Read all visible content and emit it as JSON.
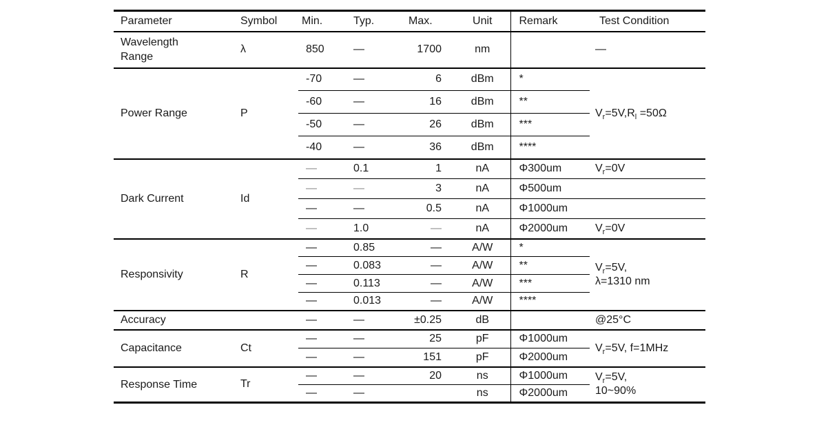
{
  "table": {
    "headers": [
      "Parameter",
      "Symbol",
      "Min.",
      "Typ.",
      "Max.",
      "Unit",
      "Remark",
      "Test Condition"
    ],
    "sections": [
      {
        "id": "wavelength-range",
        "parameter": "Wavelength\nRange",
        "symbol": "λ",
        "rows": [
          {
            "min": "850",
            "typ": "—",
            "max": "1700",
            "unit": "nm",
            "remark": "",
            "test": "—"
          }
        ]
      },
      {
        "id": "power-range",
        "parameter": "Power Range",
        "symbol": "P",
        "test_merged": "V~r~=5V,R~l~ =50Ω",
        "rows": [
          {
            "min": "-70",
            "typ": "—",
            "max": "6",
            "unit": "dBm",
            "remark": "*"
          },
          {
            "min": "-60",
            "typ": "—",
            "max": "16",
            "unit": "dBm",
            "remark": "**"
          },
          {
            "min": "-50",
            "typ": "—",
            "max": "26",
            "unit": "dBm",
            "remark": "***"
          },
          {
            "min": "-40",
            "typ": "—",
            "max": "36",
            "unit": "dBm",
            "remark": "****"
          }
        ]
      },
      {
        "id": "dark-current",
        "parameter": "Dark Current",
        "symbol": "Id",
        "full_dividers": true,
        "rows": [
          {
            "min": {
              "t": "—",
              "c": "muted"
            },
            "typ": "0.1",
            "max": "1",
            "unit": "nA",
            "remark": "Φ300um",
            "test": "V~r~=0V"
          },
          {
            "min": {
              "t": "—",
              "c": "muted"
            },
            "typ": {
              "t": "—",
              "c": "muted"
            },
            "max": "3",
            "unit": "nA",
            "remark": "Φ500um",
            "test": ""
          },
          {
            "min": "—",
            "typ": "—",
            "max": "0.5",
            "unit": "nA",
            "remark": "Φ1000um",
            "test": ""
          },
          {
            "min": {
              "t": "—",
              "c": "muted"
            },
            "typ": "1.0",
            "max": {
              "t": "—",
              "c": "muted"
            },
            "unit": "nA",
            "remark": "Φ2000um",
            "test": "V~r~=0V"
          }
        ]
      },
      {
        "id": "responsivity",
        "parameter": "Responsivity",
        "symbol": "R",
        "test_merged": "V~r~=5V,\nλ=1310 nm",
        "rows": [
          {
            "min": "—",
            "typ": "0.85",
            "max": "—",
            "unit": "A/W",
            "remark": "*"
          },
          {
            "min": "—",
            "typ": "0.083",
            "max": "—",
            "unit": "A/W",
            "remark": "**"
          },
          {
            "min": "—",
            "typ": "0.113",
            "max": "—",
            "unit": "A/W",
            "remark": "***"
          },
          {
            "min": "—",
            "typ": "0.013",
            "max": "—",
            "unit": "A/W",
            "remark": "****"
          }
        ]
      },
      {
        "id": "accuracy",
        "parameter": "Accuracy",
        "symbol": "",
        "rows": [
          {
            "min": "—",
            "typ": "—",
            "max": "±0.25",
            "unit": "dB",
            "remark": "",
            "test": "@25°C"
          }
        ]
      },
      {
        "id": "capacitance",
        "parameter": "Capacitance",
        "symbol": "Ct",
        "test_merged": "V~r~=5V, f=1MHz",
        "rows": [
          {
            "min": "—",
            "typ": "—",
            "max": "25",
            "unit": "pF",
            "remark": "Φ1000um"
          },
          {
            "min": "—",
            "typ": "—",
            "max": "151",
            "unit": "pF",
            "remark": "Φ2000um"
          }
        ]
      },
      {
        "id": "response-time",
        "parameter": "Response Time",
        "symbol": "Tr",
        "test_merged": "V~r~=5V,\n10~90%",
        "rows": [
          {
            "min": "—",
            "typ": "—",
            "max": "20",
            "unit": "ns",
            "remark": "Φ1000um"
          },
          {
            "min": "—",
            "typ": "—",
            "max": "",
            "unit": "ns",
            "remark": "Φ2000um"
          }
        ]
      }
    ]
  }
}
